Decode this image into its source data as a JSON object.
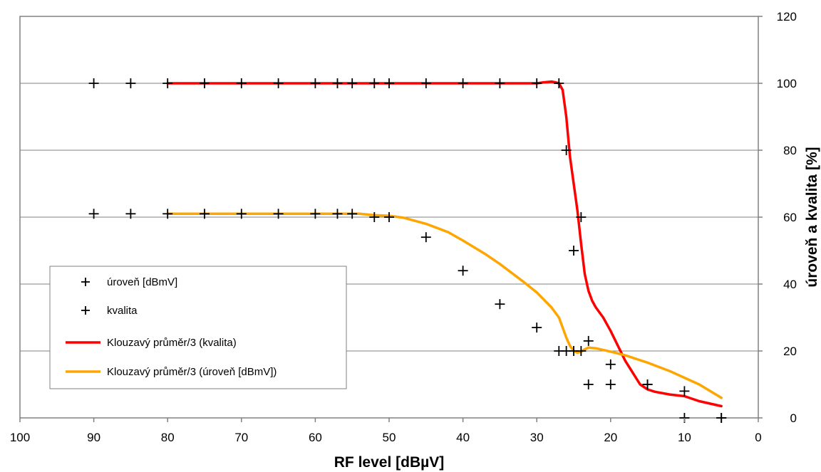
{
  "chart_data": {
    "type": "line",
    "title": "",
    "xlabel": "RF level [dBµV]",
    "ylabel": "úroveň a kvalita [%]",
    "xlim": [
      100,
      0
    ],
    "ylim": [
      0,
      120
    ],
    "x_ticks": [
      100,
      90,
      80,
      70,
      60,
      50,
      40,
      30,
      20,
      10,
      0
    ],
    "y_ticks": [
      0,
      20,
      40,
      60,
      80,
      100,
      120
    ],
    "grid": true,
    "legend_position": "lower-left",
    "series": [
      {
        "name": "úroveň [dBmV]",
        "kind": "scatter",
        "marker": "plus",
        "color": "#000000",
        "x": [
          90,
          85,
          80,
          75,
          70,
          65,
          60,
          57,
          55,
          52,
          50,
          45,
          40,
          35,
          30,
          27,
          26,
          25,
          24,
          23,
          20,
          15,
          10,
          5
        ],
        "y": [
          61,
          61,
          61,
          61,
          61,
          61,
          61,
          61,
          61,
          60,
          60,
          54,
          44,
          34,
          27,
          20,
          20,
          20,
          20,
          23,
          16,
          10,
          8,
          0
        ]
      },
      {
        "name": "kvalita",
        "kind": "scatter",
        "marker": "plus",
        "color": "#000000",
        "x": [
          90,
          85,
          80,
          75,
          70,
          65,
          60,
          57,
          55,
          52,
          50,
          45,
          40,
          35,
          30,
          27,
          26,
          25,
          24,
          23,
          20,
          15,
          10,
          5
        ],
        "y": [
          100,
          100,
          100,
          100,
          100,
          100,
          100,
          100,
          100,
          100,
          100,
          100,
          100,
          100,
          100,
          100,
          80,
          50,
          60,
          10,
          10,
          10,
          0,
          0
        ]
      },
      {
        "name": "Klouzavý průměr/3 (kvalita)",
        "kind": "line",
        "color": "#ff0000",
        "x": [
          80,
          75,
          70,
          65,
          60,
          57,
          55,
          52,
          50,
          45,
          40,
          35,
          30,
          29,
          28,
          27.5,
          27,
          26.5,
          26,
          25.5,
          25,
          24.5,
          24,
          23.5,
          23,
          22.5,
          22,
          21,
          20,
          18,
          16,
          15,
          14,
          12,
          10,
          8,
          5
        ],
        "y": [
          100,
          100,
          100,
          100,
          100,
          100,
          100,
          100,
          100,
          100,
          100,
          100,
          100,
          100.3,
          100.5,
          100.3,
          100,
          98,
          90,
          78,
          70,
          62,
          52,
          43,
          38,
          35,
          33,
          30,
          26,
          17,
          10,
          8.5,
          7.8,
          7,
          6.5,
          5,
          3.5
        ]
      },
      {
        "name": "Klouzavý průměr/3 (úroveň [dBmV])",
        "kind": "line",
        "color": "#ffa500",
        "x": [
          80,
          75,
          70,
          65,
          60,
          57,
          55,
          54,
          53,
          52,
          50,
          48,
          45,
          42,
          40,
          37,
          35,
          32,
          30,
          28,
          27,
          26.5,
          26,
          25.5,
          25,
          24.5,
          24,
          23.5,
          23,
          22,
          20,
          18,
          15,
          12,
          10,
          8,
          5
        ],
        "y": [
          61,
          61,
          61,
          61,
          61,
          61,
          61,
          61,
          60.8,
          60.6,
          60.4,
          59.8,
          58,
          55.5,
          53,
          49,
          46,
          41,
          37.5,
          33,
          30,
          27,
          24,
          21.5,
          20,
          19.5,
          19.8,
          20.5,
          21,
          20.8,
          19.8,
          18.7,
          16.5,
          14,
          12,
          10,
          6
        ]
      }
    ]
  }
}
